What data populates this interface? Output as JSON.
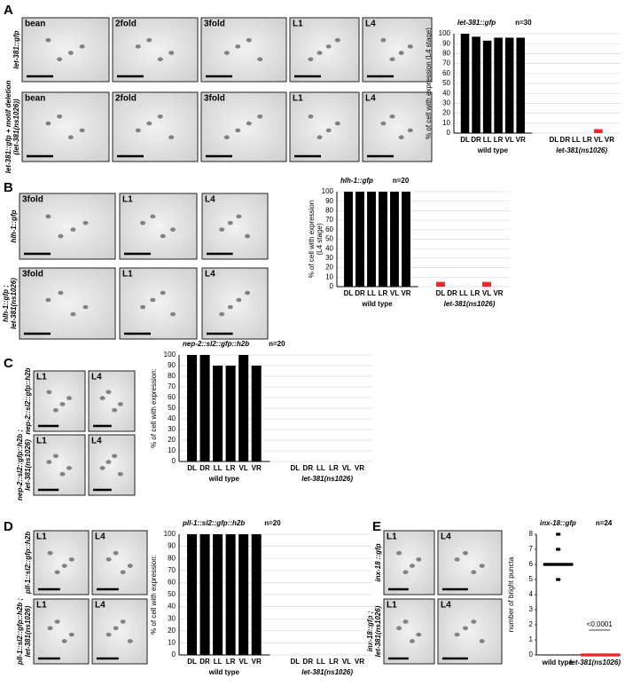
{
  "figure": {
    "panels": [
      {
        "letter": "A",
        "rows": [
          {
            "label": [
              "let-381::gfp"
            ],
            "tiles": [
              "bean",
              "2fold",
              "3fold",
              "L1",
              "L4"
            ]
          },
          {
            "label": [
              "let-381::gfp + motif deletion",
              "(let-381(ns1026))"
            ],
            "tiles": [
              "bean",
              "2fold",
              "3fold",
              "L1",
              "L4"
            ]
          }
        ]
      },
      {
        "letter": "B",
        "rows": [
          {
            "label": [
              "hlh-1::gfp"
            ],
            "tiles": [
              "3fold",
              "L1",
              "L4"
            ]
          },
          {
            "label": [
              "hlh-1::gfp ;",
              "let-381(ns1026)"
            ],
            "tiles": [
              "3fold",
              "L1",
              "L4"
            ]
          }
        ]
      },
      {
        "letter": "C",
        "rows": [
          {
            "label": [
              "nep-2::sl2::gfp::h2b"
            ],
            "tiles": [
              "L1",
              "L4"
            ]
          },
          {
            "label": [
              "nep-2::sl2::gfp::h2b ;",
              "let-381(ns1026)"
            ],
            "tiles": [
              "L1",
              "L4"
            ]
          }
        ]
      },
      {
        "letter": "D",
        "rows": [
          {
            "label": [
              "pll-1::sl2::gfp::h2b"
            ],
            "tiles": [
              "L1",
              "L4"
            ]
          },
          {
            "label": [
              "pll-1::sl2::gfp::h2b ;",
              "let-381(ns1026)"
            ],
            "tiles": [
              "L1",
              "L4"
            ]
          }
        ]
      },
      {
        "letter": "E",
        "rows": [
          {
            "label": [
              "inx-18 ::gfp"
            ],
            "tiles": [
              "L1",
              "L4"
            ]
          },
          {
            "label": [
              "inx-18::gfp ;",
              "let-381(ns1026)"
            ],
            "tiles": [
              "L1",
              "L4"
            ]
          }
        ]
      }
    ]
  },
  "chart_data": [
    {
      "type": "bar",
      "title": "let-381::gfp",
      "n": "n=30",
      "ylabel": [
        "% of cell with expression (L4 stage)"
      ],
      "ylim": [
        0,
        100
      ],
      "yticks": [
        0,
        10,
        20,
        30,
        40,
        50,
        60,
        70,
        80,
        90,
        100
      ],
      "grid": true,
      "groups": [
        {
          "name": "wild type",
          "color": "#000000",
          "categories": [
            "DL",
            "DR",
            "LL",
            "LR",
            "VL",
            "VR"
          ],
          "values": [
            100,
            97,
            93,
            96,
            96,
            96
          ]
        },
        {
          "name": "let-381(ns1026)",
          "color": "#e8282b",
          "categories": [
            "DL",
            "DR",
            "LL",
            "LR",
            "VL",
            "VR"
          ],
          "values": [
            0,
            0,
            0,
            0,
            4,
            0
          ]
        }
      ]
    },
    {
      "type": "bar",
      "title": "hlh-1::gfp",
      "n": "n=20",
      "ylabel": [
        "% of cell with expression",
        "(L4 stage)"
      ],
      "ylim": [
        0,
        100
      ],
      "yticks": [
        0,
        10,
        20,
        30,
        40,
        50,
        60,
        70,
        80,
        90,
        100
      ],
      "grid": true,
      "groups": [
        {
          "name": "wild type",
          "color": "#000000",
          "categories": [
            "DL",
            "DR",
            "LL",
            "LR",
            "VL",
            "VR"
          ],
          "values": [
            100,
            100,
            100,
            100,
            100,
            100
          ]
        },
        {
          "name": "let-381(ns1026)",
          "color": "#e8282b",
          "categories": [
            "DL",
            "DR",
            "LL",
            "LR",
            "VL",
            "VR"
          ],
          "values": [
            5,
            0,
            0,
            0,
            5,
            0
          ]
        }
      ]
    },
    {
      "type": "bar",
      "title": "nep-2::sl2::gfp::h2b",
      "n": "n=20",
      "ylabel": [
        "% of cell with expression:"
      ],
      "ylim": [
        0,
        100
      ],
      "yticks": [
        0,
        10,
        20,
        30,
        40,
        50,
        60,
        70,
        80,
        90,
        100
      ],
      "grid": true,
      "groups": [
        {
          "name": "wild type",
          "color": "#000000",
          "categories": [
            "DL",
            "DR",
            "LL",
            "LR",
            "VL",
            "VR"
          ],
          "values": [
            100,
            100,
            90,
            90,
            100,
            90
          ]
        },
        {
          "name": "let-381(ns1026)",
          "color": "#e8282b",
          "categories": [
            "DL",
            "DR",
            "LL",
            "LR",
            "VL",
            "VR"
          ],
          "values": [
            0,
            0,
            0,
            0,
            0,
            0
          ]
        }
      ]
    },
    {
      "type": "bar",
      "title": "pll-1::sl2::gfp::h2b",
      "n": "n=20",
      "ylabel": [
        "% of cell with expression:"
      ],
      "ylim": [
        0,
        100
      ],
      "yticks": [
        0,
        10,
        20,
        30,
        40,
        50,
        60,
        70,
        80,
        90,
        100
      ],
      "grid": true,
      "groups": [
        {
          "name": "wild type",
          "color": "#000000",
          "categories": [
            "DL",
            "DR",
            "LL",
            "LR",
            "VL",
            "VR"
          ],
          "values": [
            100,
            100,
            100,
            100,
            100,
            100
          ]
        },
        {
          "name": "let-381(ns1026)",
          "color": "#e8282b",
          "categories": [
            "DL",
            "DR",
            "LL",
            "LR",
            "VL",
            "VR"
          ],
          "values": [
            0,
            0,
            0,
            0,
            0,
            0
          ]
        }
      ]
    },
    {
      "type": "strip",
      "title": "inx-18::gfp",
      "n": "n=24",
      "ylabel": [
        "number of bright puncta"
      ],
      "ylim": [
        0,
        8
      ],
      "yticks": [
        0,
        1,
        2,
        3,
        4,
        5,
        6,
        7,
        8
      ],
      "annotation": "<0.0001",
      "groups": [
        {
          "name": "wild type",
          "color": "#000000",
          "values": [
            8,
            8,
            7,
            7,
            6,
            6,
            6,
            6,
            6,
            6,
            6,
            6,
            6,
            6,
            6,
            6,
            6,
            6,
            6,
            6,
            6,
            6,
            5,
            5
          ]
        },
        {
          "name": "let-381(ns1026)",
          "color": "#e8282b",
          "values": [
            0,
            0,
            0,
            0,
            0,
            0,
            0,
            0,
            0,
            0,
            0,
            0,
            0,
            0,
            0,
            0,
            0,
            0,
            0,
            0,
            0,
            0,
            0,
            0
          ]
        }
      ]
    }
  ]
}
